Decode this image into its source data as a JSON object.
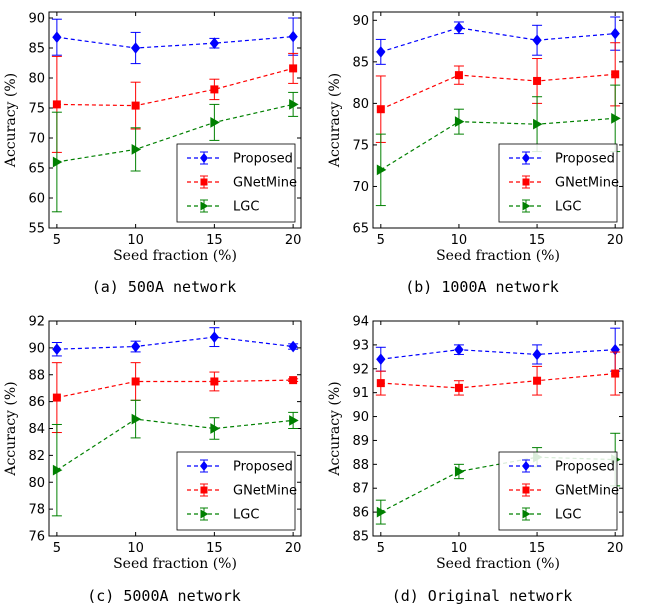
{
  "chart_data": [
    {
      "type": "line",
      "caption": "(a) 500A network",
      "xlabel": "Seed fraction (%)",
      "ylabel": "Accuracy (%)",
      "x": [
        5,
        10,
        15,
        20
      ],
      "xlim": [
        4.5,
        20.5
      ],
      "ylim": [
        55,
        91
      ],
      "yticks": [
        55,
        60,
        65,
        70,
        75,
        80,
        85,
        90
      ],
      "legend_position": "bottom-right",
      "series": [
        {
          "name": "Proposed",
          "color": "#0000ff",
          "marker": "diamond",
          "values": [
            86.8,
            85.0,
            85.8,
            86.9
          ],
          "errors": [
            3.0,
            2.6,
            0.8,
            3.1
          ]
        },
        {
          "name": "GNetMine",
          "color": "#ff0000",
          "marker": "square",
          "values": [
            75.6,
            75.4,
            78.1,
            81.6
          ],
          "errors": [
            8.0,
            3.9,
            1.7,
            2.5
          ]
        },
        {
          "name": "LGC",
          "color": "#008000",
          "marker": "triangle-right",
          "values": [
            66.0,
            68.1,
            72.6,
            75.6
          ],
          "errors": [
            8.3,
            3.6,
            3.0,
            2.0
          ]
        }
      ]
    },
    {
      "type": "line",
      "caption": "(b) 1000A network",
      "xlabel": "Seed fraction (%)",
      "ylabel": "Accuracy (%)",
      "x": [
        5,
        10,
        15,
        20
      ],
      "xlim": [
        4.5,
        20.5
      ],
      "ylim": [
        65,
        91
      ],
      "yticks": [
        65,
        70,
        75,
        80,
        85,
        90
      ],
      "legend_position": "bottom-right",
      "series": [
        {
          "name": "Proposed",
          "color": "#0000ff",
          "marker": "diamond",
          "values": [
            86.2,
            89.1,
            87.6,
            88.4
          ],
          "errors": [
            1.5,
            0.7,
            1.8,
            2.0
          ]
        },
        {
          "name": "GNetMine",
          "color": "#ff0000",
          "marker": "square",
          "values": [
            79.3,
            83.4,
            82.7,
            83.5
          ],
          "errors": [
            4.0,
            1.1,
            2.7,
            3.8
          ]
        },
        {
          "name": "LGC",
          "color": "#008000",
          "marker": "triangle-right",
          "values": [
            72.0,
            77.8,
            77.5,
            78.2
          ],
          "errors": [
            4.3,
            1.5,
            3.3,
            4.0
          ]
        }
      ]
    },
    {
      "type": "line",
      "caption": "(c) 5000A network",
      "xlabel": "Seed fraction (%)",
      "ylabel": "Accuracy (%)",
      "x": [
        5,
        10,
        15,
        20
      ],
      "xlim": [
        4.5,
        20.5
      ],
      "ylim": [
        76,
        92
      ],
      "yticks": [
        76,
        78,
        80,
        82,
        84,
        86,
        88,
        90,
        92
      ],
      "legend_position": "bottom-right",
      "series": [
        {
          "name": "Proposed",
          "color": "#0000ff",
          "marker": "diamond",
          "values": [
            89.9,
            90.1,
            90.8,
            90.1
          ],
          "errors": [
            0.5,
            0.4,
            0.7,
            0.2
          ]
        },
        {
          "name": "GNetMine",
          "color": "#ff0000",
          "marker": "square",
          "values": [
            86.3,
            87.5,
            87.5,
            87.6
          ],
          "errors": [
            2.6,
            1.4,
            0.7,
            0.1
          ]
        },
        {
          "name": "LGC",
          "color": "#008000",
          "marker": "triangle-right",
          "values": [
            80.9,
            84.7,
            84.0,
            84.6
          ],
          "errors": [
            3.4,
            1.4,
            0.8,
            0.6
          ]
        }
      ]
    },
    {
      "type": "line",
      "caption": "(d) Original network",
      "xlabel": "Seed fraction (%)",
      "ylabel": "Accuracy (%)",
      "x": [
        5,
        10,
        15,
        20
      ],
      "xlim": [
        4.5,
        20.5
      ],
      "ylim": [
        85,
        94
      ],
      "yticks": [
        85,
        86,
        87,
        88,
        89,
        90,
        91,
        92,
        93,
        94
      ],
      "legend_position": "bottom-right",
      "series": [
        {
          "name": "Proposed",
          "color": "#0000ff",
          "marker": "diamond",
          "values": [
            92.4,
            92.8,
            92.6,
            92.8
          ],
          "errors": [
            0.5,
            0.2,
            0.4,
            0.9
          ]
        },
        {
          "name": "GNetMine",
          "color": "#ff0000",
          "marker": "square",
          "values": [
            91.4,
            91.2,
            91.5,
            91.8
          ],
          "errors": [
            0.5,
            0.3,
            0.6,
            0.9
          ]
        },
        {
          "name": "LGC",
          "color": "#008000",
          "marker": "triangle-right",
          "values": [
            86.0,
            87.7,
            88.3,
            88.2
          ],
          "errors": [
            0.5,
            0.3,
            0.4,
            1.1
          ]
        }
      ]
    }
  ]
}
